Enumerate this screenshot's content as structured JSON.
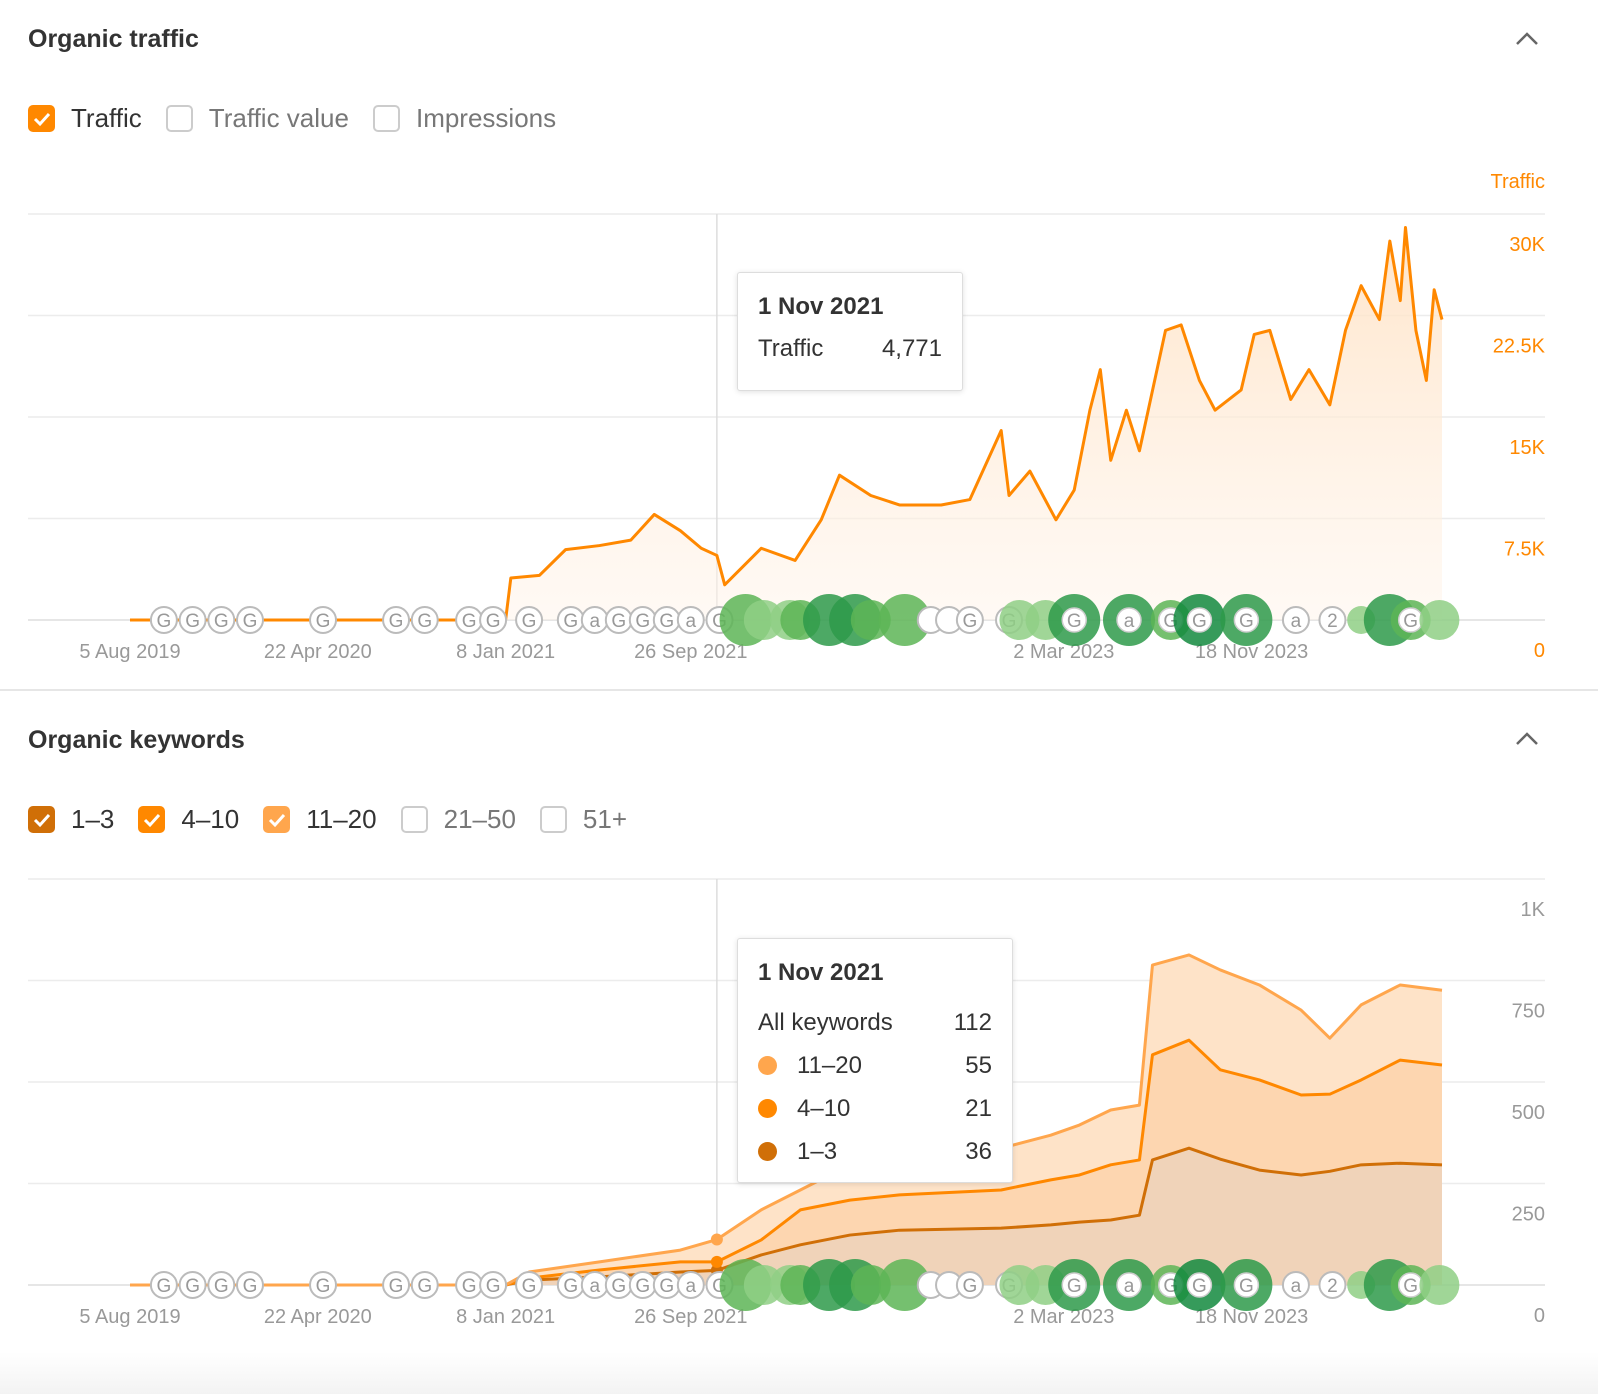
{
  "traffic_section": {
    "title": "Organic traffic",
    "checkboxes": [
      {
        "label": "Traffic",
        "checked": true,
        "color": "#ff8800"
      },
      {
        "label": "Traffic value",
        "checked": false
      },
      {
        "label": "Impressions",
        "checked": false
      }
    ],
    "tooltip": {
      "date": "1 Nov 2021",
      "rows": [
        {
          "label": "Traffic",
          "value": "4,771"
        }
      ]
    }
  },
  "keywords_section": {
    "title": "Organic keywords",
    "checkboxes": [
      {
        "label": "1–3",
        "checked": true,
        "color": "#d06f07"
      },
      {
        "label": "4–10",
        "checked": true,
        "color": "#ff8800"
      },
      {
        "label": "11–20",
        "checked": true,
        "color": "#ffa64d"
      },
      {
        "label": "21–50",
        "checked": false
      },
      {
        "label": "51+",
        "checked": false
      }
    ],
    "tooltip": {
      "date": "1 Nov 2021",
      "total_label": "All keywords",
      "total": "112",
      "rows": [
        {
          "label": "11–20",
          "value": "55",
          "color": "#ffa64d"
        },
        {
          "label": "4–10",
          "value": "21",
          "color": "#ff8800"
        },
        {
          "label": "1–3",
          "value": "36",
          "color": "#d06f07"
        }
      ]
    }
  },
  "chart_data": [
    {
      "type": "area",
      "title": "Organic traffic",
      "ylabel": "Traffic",
      "ylim": [
        0,
        30000
      ],
      "yticks": [
        "0",
        "7.5K",
        "15K",
        "22.5K",
        "30K"
      ],
      "xlim": [
        2019.59,
        2024.62
      ],
      "xticks": [
        {
          "t": 2019.59,
          "label": "5 Aug 2019"
        },
        {
          "t": 2020.31,
          "label": "22 Apr 2020"
        },
        {
          "t": 2021.03,
          "label": "8 Jan 2021"
        },
        {
          "t": 2021.74,
          "label": "26 Sep 2021"
        },
        {
          "t": 2023.17,
          "label": "2 Mar 2023"
        },
        {
          "t": 2023.89,
          "label": "18 Nov 2023"
        }
      ],
      "hover_t": 2021.84,
      "series": [
        {
          "name": "Traffic",
          "color": "#ff8800",
          "x": [
            2019.59,
            2021.03,
            2021.05,
            2021.16,
            2021.26,
            2021.39,
            2021.51,
            2021.6,
            2021.7,
            2021.78,
            2021.84,
            2021.87,
            2022.01,
            2022.14,
            2022.24,
            2022.31,
            2022.43,
            2022.54,
            2022.7,
            2022.81,
            2022.93,
            2022.96,
            2023.04,
            2023.14,
            2023.21,
            2023.27,
            2023.31,
            2023.35,
            2023.41,
            2023.46,
            2023.56,
            2023.62,
            2023.69,
            2023.75,
            2023.85,
            2023.9,
            2023.96,
            2024.04,
            2024.11,
            2024.19,
            2024.25,
            2024.31,
            2024.38,
            2024.42,
            2024.46,
            2024.48,
            2024.52,
            2024.56,
            2024.59,
            2024.62
          ],
          "y": [
            0,
            0,
            3100,
            3300,
            5200,
            5500,
            5900,
            7800,
            6600,
            5300,
            4771,
            2600,
            5300,
            4400,
            7400,
            10700,
            9200,
            8500,
            8500,
            8900,
            14000,
            9200,
            11000,
            7400,
            9600,
            15500,
            18500,
            11800,
            15500,
            12500,
            21400,
            21800,
            17700,
            15500,
            17000,
            21100,
            21400,
            16300,
            18500,
            15900,
            21400,
            24700,
            22200,
            28000,
            23600,
            29000,
            21400,
            17700,
            24400,
            22200
          ]
        }
      ]
    },
    {
      "type": "area",
      "stacked": true,
      "title": "Organic keywords",
      "ylim": [
        0,
        1000
      ],
      "yticks": [
        "0",
        "250",
        "500",
        "750",
        "1K"
      ],
      "xlim": [
        2019.59,
        2024.62
      ],
      "xticks": [
        {
          "t": 2019.59,
          "label": "5 Aug 2019"
        },
        {
          "t": 2020.31,
          "label": "22 Apr 2020"
        },
        {
          "t": 2021.03,
          "label": "8 Jan 2021"
        },
        {
          "t": 2021.74,
          "label": "26 Sep 2021"
        },
        {
          "t": 2023.17,
          "label": "2 Mar 2023"
        },
        {
          "t": 2023.89,
          "label": "18 Nov 2023"
        }
      ],
      "hover_t": 2021.84,
      "x": [
        2019.59,
        2021.03,
        2021.12,
        2021.39,
        2021.7,
        2021.84,
        2022.01,
        2022.16,
        2022.35,
        2022.54,
        2022.93,
        2023.12,
        2023.23,
        2023.35,
        2023.46,
        2023.51,
        2023.65,
        2023.77,
        2023.92,
        2024.08,
        2024.19,
        2024.31,
        2024.46,
        2024.62
      ],
      "series": [
        {
          "name": "1–3",
          "color": "#d06f07",
          "fill": "#f0d3b9",
          "values": [
            0,
            0,
            12,
            20,
            32,
            36,
            74,
            99,
            123,
            135,
            140,
            148,
            155,
            160,
            172,
            308,
            337,
            310,
            283,
            271,
            280,
            296,
            300,
            296
          ]
        },
        {
          "name": "4–10",
          "color": "#ff8800",
          "fill": "#fdd6b0",
          "values": [
            0,
            0,
            5,
            17,
            25,
            21,
            37,
            86,
            86,
            87,
            94,
            111,
            116,
            136,
            136,
            259,
            266,
            220,
            222,
            197,
            190,
            209,
            254,
            246
          ]
        },
        {
          "name": "11–20",
          "color": "#ffa64d",
          "fill": "#fee3c8",
          "values": [
            0,
            0,
            15,
            20,
            29,
            55,
            74,
            49,
            87,
            110,
            103,
            110,
            123,
            135,
            135,
            221,
            210,
            246,
            234,
            209,
            138,
            185,
            185,
            184
          ]
        }
      ]
    }
  ],
  "annotations": [
    {
      "t": 2019.72,
      "label": "G",
      "tone": "gray"
    },
    {
      "t": 2019.83,
      "label": "G",
      "tone": "gray"
    },
    {
      "t": 2019.94,
      "label": "G",
      "tone": "gray"
    },
    {
      "t": 2020.05,
      "label": "G",
      "tone": "gray"
    },
    {
      "t": 2020.33,
      "label": "G",
      "tone": "gray"
    },
    {
      "t": 2020.61,
      "label": "G",
      "tone": "gray"
    },
    {
      "t": 2020.72,
      "label": "G",
      "tone": "gray"
    },
    {
      "t": 2020.89,
      "label": "G",
      "tone": "gray"
    },
    {
      "t": 2020.92,
      "label": "G",
      "tone": "gray"
    },
    {
      "t": 2021.12,
      "label": "G",
      "tone": "gray"
    },
    {
      "t": 2021.28,
      "label": "G",
      "tone": "gray"
    },
    {
      "t": 2021.36,
      "label": "a",
      "tone": "gray"
    },
    {
      "t": 2021.46,
      "label": "G",
      "tone": "gray"
    },
    {
      "t": 2021.51,
      "label": "G",
      "tone": "gray"
    },
    {
      "t": 2021.62,
      "label": "G",
      "tone": "gray"
    },
    {
      "t": 2021.7,
      "label": "a",
      "tone": "gray"
    },
    {
      "t": 2021.85,
      "label": "G",
      "tone": "gray"
    },
    {
      "t": 2021.95,
      "label": "",
      "tone": "mid",
      "size": "large"
    },
    {
      "t": 2022.02,
      "label": "",
      "tone": "light",
      "size": "medium"
    },
    {
      "t": 2022.12,
      "label": "",
      "tone": "light",
      "size": "medium"
    },
    {
      "t": 2022.16,
      "label": "",
      "tone": "mid",
      "size": "medium"
    },
    {
      "t": 2022.27,
      "label": "",
      "tone": "dark",
      "size": "large"
    },
    {
      "t": 2022.37,
      "label": "",
      "tone": "dark",
      "size": "large"
    },
    {
      "t": 2022.43,
      "label": "",
      "tone": "mid",
      "size": "medium"
    },
    {
      "t": 2022.56,
      "label": "",
      "tone": "mid",
      "size": "large"
    },
    {
      "t": 2022.66,
      "label": "",
      "tone": "gray"
    },
    {
      "t": 2022.73,
      "label": "",
      "tone": "gray"
    },
    {
      "t": 2022.81,
      "label": "G",
      "tone": "gray"
    },
    {
      "t": 2022.96,
      "label": "G",
      "tone": "gray"
    },
    {
      "t": 2023.0,
      "label": "",
      "tone": "light",
      "size": "medium"
    },
    {
      "t": 2023.1,
      "label": "",
      "tone": "light",
      "size": "medium"
    },
    {
      "t": 2023.21,
      "label": "G",
      "tone": "dark",
      "size": "large"
    },
    {
      "t": 2023.42,
      "label": "a",
      "tone": "dark",
      "size": "large"
    },
    {
      "t": 2023.58,
      "label": "G",
      "tone": "mid",
      "size": "medium"
    },
    {
      "t": 2023.69,
      "label": "G",
      "tone": "darkest",
      "size": "large"
    },
    {
      "t": 2023.87,
      "label": "G",
      "tone": "dark",
      "size": "large"
    },
    {
      "t": 2024.06,
      "label": "a",
      "tone": "gray"
    },
    {
      "t": 2024.2,
      "label": "2",
      "tone": "gray"
    },
    {
      "t": 2024.31,
      "label": "",
      "tone": "light",
      "size": "small"
    },
    {
      "t": 2024.42,
      "label": "",
      "tone": "dark",
      "size": "large"
    },
    {
      "t": 2024.5,
      "label": "G",
      "tone": "mid",
      "size": "medium"
    },
    {
      "t": 2024.61,
      "label": "",
      "tone": "light",
      "size": "medium"
    }
  ]
}
